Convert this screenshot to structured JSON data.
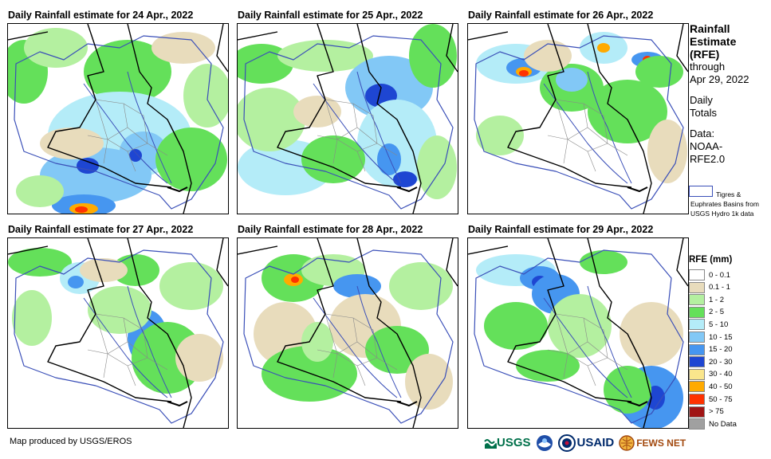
{
  "panels": [
    {
      "title": "Daily Rainfall estimate for 24 Apr., 2022"
    },
    {
      "title": "Daily Rainfall estimate for 25 Apr., 2022"
    },
    {
      "title": "Daily Rainfall estimate for 26 Apr., 2022"
    },
    {
      "title": "Daily Rainfall estimate for 27 Apr., 2022"
    },
    {
      "title": "Daily Rainfall estimate for 28 Apr., 2022"
    },
    {
      "title": "Daily Rainfall estimate for 29 Apr., 2022"
    }
  ],
  "sidebar": {
    "heading_1": "Rainfall",
    "heading_2": "Estimate",
    "heading_3": "(RFE)",
    "through_1": "through",
    "through_2": "Apr 29, 2022",
    "daily_1": "Daily",
    "daily_2": "Totals",
    "data_1": "Data:",
    "data_2": "NOAA-",
    "data_3": "RFE2.0",
    "basin_note": "Tigres & Euphrates Basins from USGS Hydro 1k data"
  },
  "legend": {
    "title": "RFE (mm)",
    "items": [
      {
        "label": "0 - 0.1",
        "color": "#ffffff"
      },
      {
        "label": "0.1 - 1",
        "color": "#e8dcbc"
      },
      {
        "label": "1 - 2",
        "color": "#b4f0a0"
      },
      {
        "label": "2 - 5",
        "color": "#64e05a"
      },
      {
        "label": "5 - 10",
        "color": "#b4ecf8"
      },
      {
        "label": "10 - 15",
        "color": "#82c8f6"
      },
      {
        "label": "15 - 20",
        "color": "#4696f0"
      },
      {
        "label": "20 - 30",
        "color": "#1e46d2"
      },
      {
        "label": "30 - 40",
        "color": "#fae68c"
      },
      {
        "label": "40 - 50",
        "color": "#ffaa00"
      },
      {
        "label": "50 - 75",
        "color": "#ff3200"
      },
      {
        "label": "> 75",
        "color": "#a01414"
      },
      {
        "label": "No Data",
        "color": "#a0a0a0"
      }
    ]
  },
  "footer": {
    "credit": "Map produced by USGS/EROS",
    "logos": {
      "usgs": "USGS",
      "usaid": "USAID",
      "fewsnet": "FEWS NET"
    }
  }
}
